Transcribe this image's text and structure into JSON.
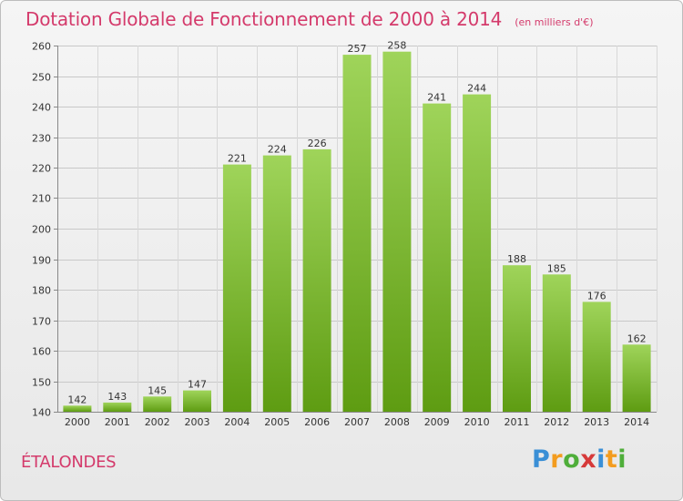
{
  "chart_data": {
    "type": "bar",
    "title": "Dotation Globale de Fonctionnement de 2000 à 2014",
    "subtitle": "(en milliers d'€)",
    "categories": [
      "2000",
      "2001",
      "2002",
      "2003",
      "2004",
      "2005",
      "2006",
      "2007",
      "2008",
      "2009",
      "2010",
      "2011",
      "2012",
      "2013",
      "2014"
    ],
    "values": [
      142,
      143,
      145,
      147,
      221,
      224,
      226,
      257,
      258,
      241,
      244,
      188,
      185,
      176,
      162
    ],
    "yticks": [
      140,
      150,
      160,
      170,
      180,
      190,
      200,
      210,
      220,
      230,
      240,
      250,
      260
    ],
    "ylim": [
      140,
      260
    ],
    "xlabel": "",
    "ylabel": "",
    "grid": true,
    "colors": {
      "bar_light": "#9fd45a",
      "bar_dark": "#5e9c12",
      "grid": "#c8c8c8",
      "accent": "#d43a6b"
    }
  },
  "commune": "ÉTALONDES",
  "logo": {
    "letters": [
      "P",
      "r",
      "o",
      "x",
      "i",
      "t",
      "i"
    ],
    "colors": [
      "#3a8fd6",
      "#f39c1f",
      "#4fae3a",
      "#d63a3a",
      "#3a8fd6",
      "#f39c1f",
      "#4fae3a"
    ]
  }
}
